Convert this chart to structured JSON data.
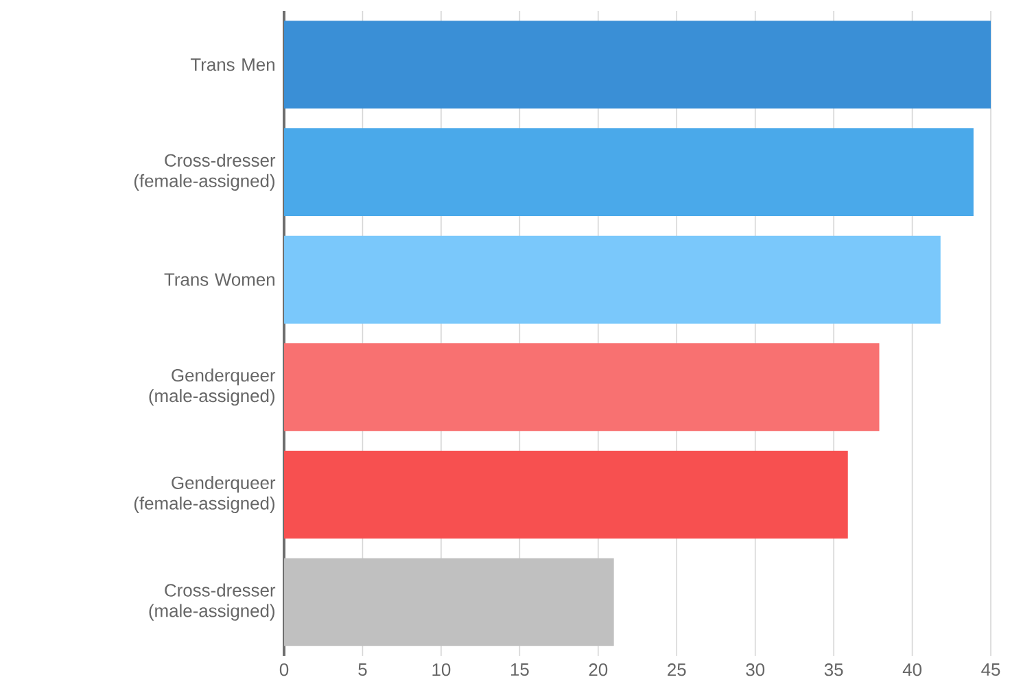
{
  "chart_data": {
    "type": "bar",
    "orientation": "horizontal",
    "categories": [
      "Trans Men",
      "Cross-dresser (female-assigned)",
      "Trans Women",
      "Genderqueer (male-assigned)",
      "Genderqueer (female-assigned)",
      "Cross-dresser (male-assigned)"
    ],
    "values": [
      45,
      43.9,
      41.8,
      37.9,
      35.9,
      21.0
    ],
    "colors": [
      "#3a8fd6",
      "#4aa9ea",
      "#7ac8fb",
      "#f87171",
      "#f75050",
      "#c0c0c0"
    ],
    "xlim": [
      0,
      45
    ],
    "xticks": [
      0,
      5,
      10,
      15,
      20,
      25,
      30,
      35,
      40,
      45
    ],
    "grid": "x"
  }
}
